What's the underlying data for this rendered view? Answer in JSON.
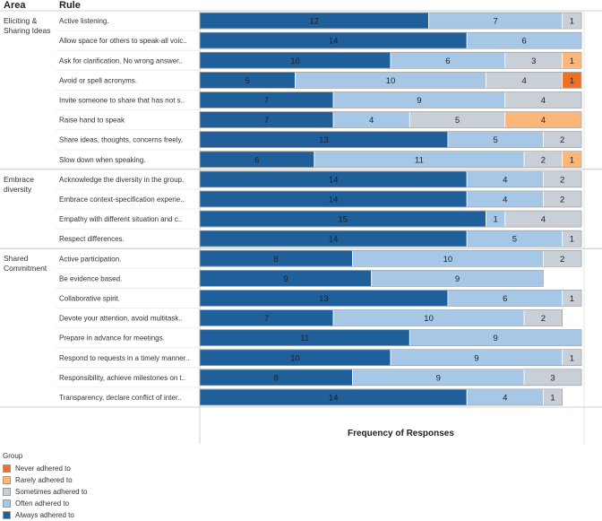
{
  "headers": {
    "area": "Area",
    "rule": "Rule"
  },
  "chart_data": {
    "type": "bar",
    "orientation": "horizontal",
    "stacked": true,
    "xlabel": "Frequency of  Responses",
    "xlim": [
      0,
      20
    ],
    "legend": {
      "title": "Group",
      "placement": "bottom-left"
    },
    "series": [
      {
        "name": "Always adhered to",
        "color": "#1f5f9a"
      },
      {
        "name": "Often adhered to",
        "color": "#a6c8e6"
      },
      {
        "name": "Sometimes adhered to",
        "color": "#c9cfd6"
      },
      {
        "name": "Rarely adhered to",
        "color": "#fcb678"
      },
      {
        "name": "Never adhered to",
        "color": "#f07021"
      }
    ],
    "legend_order": [
      4,
      3,
      2,
      1,
      0
    ],
    "areas": [
      {
        "label": "Eliciting & Sharing Ideas",
        "rows": [
          {
            "rule": "Active listening.",
            "values": [
              12,
              7,
              1,
              0,
              0
            ]
          },
          {
            "rule": "Allow space for others to speak-all voic..",
            "values": [
              14,
              6,
              0,
              0,
              0
            ]
          },
          {
            "rule": "Ask for clarification. No wrong answer..",
            "values": [
              10,
              6,
              3,
              1,
              0
            ]
          },
          {
            "rule": "Avoid or spell acronyms.",
            "values": [
              5,
              10,
              4,
              0,
              1
            ]
          },
          {
            "rule": "Invite someone to share that has not s..",
            "values": [
              7,
              9,
              4,
              0,
              0
            ]
          },
          {
            "rule": "Raise hand to speak",
            "values": [
              7,
              4,
              5,
              4,
              0
            ]
          },
          {
            "rule": "Share ideas, thoughts, concerns freely.",
            "values": [
              13,
              5,
              2,
              0,
              0
            ]
          },
          {
            "rule": "Slow down when speaking.",
            "values": [
              6,
              11,
              2,
              1,
              0
            ]
          }
        ]
      },
      {
        "label": "Embrace diversity",
        "rows": [
          {
            "rule": "Acknowledge the diversity in the group.",
            "values": [
              14,
              4,
              2,
              0,
              0
            ]
          },
          {
            "rule": "Embrace context-specification experie..",
            "values": [
              14,
              4,
              2,
              0,
              0
            ]
          },
          {
            "rule": "Empathy with different situation and c..",
            "values": [
              15,
              1,
              4,
              0,
              0
            ]
          },
          {
            "rule": "Respect differences.",
            "values": [
              14,
              5,
              1,
              0,
              0
            ]
          }
        ]
      },
      {
        "label": "Shared Commitment",
        "rows": [
          {
            "rule": "Active participation.",
            "values": [
              8,
              10,
              2,
              0,
              0
            ]
          },
          {
            "rule": "Be evidence based.",
            "values": [
              9,
              9,
              0,
              0,
              0
            ]
          },
          {
            "rule": "Collaborative spirit.",
            "values": [
              13,
              6,
              1,
              0,
              0
            ]
          },
          {
            "rule": "Devote your attention, avoid multitask..",
            "values": [
              7,
              10,
              2,
              0,
              0
            ]
          },
          {
            "rule": "Prepare in advance for meetings.",
            "values": [
              11,
              9,
              0,
              0,
              0
            ]
          },
          {
            "rule": "Respond to requests in a timely manner..",
            "values": [
              10,
              9,
              1,
              0,
              0
            ]
          },
          {
            "rule": "Responsibility, achieve milestones on t..",
            "values": [
              8,
              9,
              3,
              0,
              0
            ]
          },
          {
            "rule": "Transparency, declare conflict of inter..",
            "values": [
              14,
              4,
              1,
              0,
              0
            ]
          }
        ]
      }
    ]
  }
}
